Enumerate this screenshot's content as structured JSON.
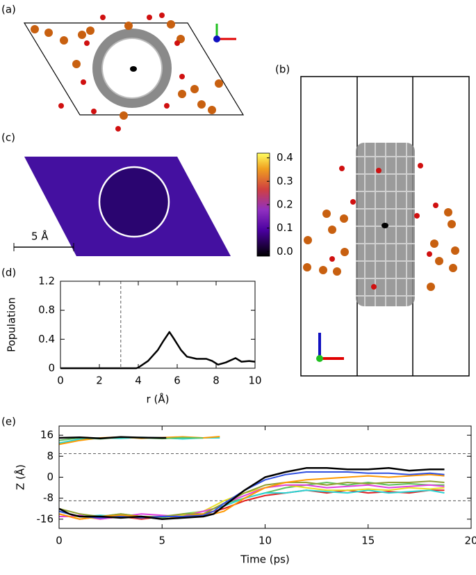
{
  "panel_labels": [
    "(a)",
    "(b)",
    "(c)",
    "(d)",
    "(e)"
  ],
  "chart_data": [
    {
      "type": "heatmap",
      "scale_label": "5 Å",
      "clim": [
        -0.02,
        0.42
      ],
      "cticks": [
        {
          "value": 0,
          "label": "0.0"
        },
        {
          "value": 0.1,
          "label": "0.1"
        },
        {
          "value": 0.2,
          "label": "0.2"
        },
        {
          "value": 0.3,
          "label": "0.3"
        },
        {
          "value": 0.4,
          "label": "0.4"
        }
      ]
    },
    {
      "type": "line",
      "xlabel": "r (Å)",
      "ylabel": "Population",
      "xlim": [
        0,
        10
      ],
      "ylim": [
        0,
        1.2
      ],
      "xticks": [
        0,
        2,
        4,
        6,
        8,
        10
      ],
      "yticks": [
        0,
        0.4,
        0.8,
        1.2
      ],
      "vline": 3.1,
      "series": [
        {
          "color": "#000000",
          "x": [
            0,
            3.9,
            4,
            4.5,
            5,
            5.3,
            5.6,
            5.8,
            6.2,
            6.5,
            7,
            7.5,
            7.8,
            8.1,
            8.5,
            9,
            9.3,
            9.7,
            10
          ],
          "values": [
            0,
            0,
            0.01,
            0.1,
            0.25,
            0.38,
            0.5,
            0.42,
            0.25,
            0.16,
            0.13,
            0.13,
            0.1,
            0.05,
            0.08,
            0.14,
            0.09,
            0.1,
            0.09
          ]
        }
      ]
    },
    {
      "type": "line",
      "xlabel": "Time (ps)",
      "ylabel": "Z (Å)",
      "xlim": [
        0,
        20
      ],
      "ylim": [
        -19.5,
        19.5
      ],
      "xticks": [
        0,
        5,
        10,
        15,
        20
      ],
      "yticks": [
        16,
        8,
        0,
        -8,
        -16
      ],
      "hlines": [
        9,
        -9
      ],
      "series": [
        {
          "color": "#2ad4d4",
          "x": [
            0,
            1,
            2,
            3,
            4,
            5,
            6,
            7,
            7.8
          ],
          "values": [
            13,
            14.5,
            15,
            14.8,
            15.2,
            15,
            14.6,
            15,
            15
          ]
        },
        {
          "color": "#ff9900",
          "x": [
            0,
            1,
            2,
            3,
            4,
            5,
            6,
            7,
            7.8
          ],
          "values": [
            12.5,
            14,
            15,
            15.3,
            14.8,
            15.1,
            15.4,
            15,
            15.5
          ]
        },
        {
          "color": "#60c060",
          "x": [
            0,
            1,
            2,
            3,
            4,
            5,
            6,
            7
          ],
          "values": [
            14,
            15,
            14.6,
            15.2,
            15,
            14.7,
            15.1,
            14.9
          ]
        },
        {
          "color": "#000000",
          "x": [
            0,
            1,
            2,
            3,
            4,
            5,
            5.2
          ],
          "values": [
            15,
            15.2,
            14.8,
            15.3,
            15.1,
            15,
            15
          ]
        },
        {
          "color": "#60c060",
          "x": [
            0,
            0.5,
            1,
            2,
            3,
            4,
            5,
            6,
            7,
            7.5,
            8,
            9,
            10,
            11,
            12,
            13,
            14,
            15,
            16,
            17,
            18,
            18.7
          ],
          "values": [
            -13,
            -14,
            -15,
            -15,
            -14,
            -15,
            -15.5,
            -14,
            -13,
            -12,
            -10,
            -8,
            -6,
            -4,
            -3,
            -2,
            -3,
            -2,
            -3,
            -2.5,
            -3,
            -3
          ]
        },
        {
          "color": "#e02020",
          "x": [
            0,
            0.5,
            1,
            2,
            3,
            4,
            5,
            6,
            7,
            7.5,
            8,
            9,
            10,
            11,
            12,
            13,
            14,
            15,
            16,
            17,
            18,
            18.7
          ],
          "values": [
            -14,
            -15,
            -16,
            -15,
            -15,
            -16,
            -15,
            -14.5,
            -14,
            -13,
            -12,
            -9,
            -7,
            -6,
            -5,
            -6,
            -5,
            -6,
            -5.5,
            -6,
            -5,
            -5
          ]
        },
        {
          "color": "#2ad4d4",
          "x": [
            0,
            0.5,
            1,
            2,
            3,
            4,
            5,
            6,
            7,
            7.5,
            8,
            9,
            10,
            11,
            12,
            13,
            14,
            15,
            16,
            17,
            18,
            18.7
          ],
          "values": [
            -13,
            -14,
            -15,
            -14.5,
            -15,
            -15,
            -16,
            -15,
            -14,
            -12,
            -11,
            -8,
            -6,
            -6,
            -5,
            -5.5,
            -6,
            -5,
            -6,
            -5.5,
            -5,
            -6
          ]
        },
        {
          "color": "#e8e020",
          "x": [
            0,
            0.5,
            1,
            2,
            3,
            4,
            5,
            6,
            7,
            7.5,
            8,
            9,
            10,
            11,
            12,
            13,
            14,
            15,
            16,
            17,
            18,
            18.7
          ],
          "values": [
            -14,
            -15,
            -15,
            -16,
            -15,
            -15.5,
            -15,
            -14.5,
            -13,
            -11,
            -9,
            -6,
            -4,
            -3,
            -4,
            -5,
            -5,
            -4.5,
            -5,
            -4,
            -4.5,
            -4
          ]
        },
        {
          "color": "#e040e0",
          "x": [
            0,
            0.5,
            1,
            2,
            3,
            4,
            5,
            6,
            7,
            7.5,
            8,
            9,
            10,
            11,
            12,
            13,
            14,
            15,
            16,
            17,
            18,
            18.7
          ],
          "values": [
            -15,
            -15,
            -14.5,
            -16,
            -15,
            -14,
            -14.5,
            -15,
            -13,
            -12,
            -10,
            -7,
            -4,
            -3,
            -3,
            -4,
            -3.5,
            -3,
            -4,
            -3.5,
            -3,
            -3.5
          ]
        },
        {
          "color": "#90a030",
          "x": [
            0,
            0.5,
            1,
            2,
            3,
            4,
            5,
            6,
            7,
            7.5,
            8,
            9,
            10,
            11,
            12,
            13,
            14,
            15,
            16,
            17,
            18,
            18.7
          ],
          "values": [
            -12,
            -13,
            -14,
            -15,
            -14,
            -15,
            -15,
            -14,
            -14,
            -12,
            -10,
            -6,
            -3,
            -2,
            -2,
            -3,
            -2,
            -2.5,
            -2,
            -2,
            -1.5,
            -2
          ]
        },
        {
          "color": "#ff9900",
          "x": [
            0,
            0.5,
            1,
            2,
            3,
            4,
            5,
            6,
            7,
            7.5,
            8,
            9,
            10,
            11,
            12,
            13,
            14,
            15,
            16,
            17,
            18,
            18.7
          ],
          "values": [
            -14,
            -15,
            -16,
            -15,
            -14.5,
            -15,
            -16,
            -15,
            -14,
            -14,
            -13,
            -8,
            -4,
            -2,
            -1,
            -0.5,
            0,
            0.5,
            0,
            0.5,
            1,
            0.5
          ]
        },
        {
          "color": "#3050e0",
          "x": [
            0,
            0.5,
            1,
            2,
            3,
            4,
            5,
            6,
            7,
            7.5,
            8,
            9,
            10,
            11,
            12,
            13,
            14,
            15,
            16,
            17,
            18,
            18.7
          ],
          "values": [
            -13,
            -14,
            -15,
            -15.5,
            -15,
            -15.5,
            -15,
            -15,
            -14.5,
            -13,
            -10,
            -5,
            -1,
            1,
            2,
            2,
            2,
            1.5,
            1.5,
            1,
            1.5,
            1
          ]
        },
        {
          "color": "#000000",
          "x": [
            0,
            0.5,
            1,
            2,
            3,
            4,
            5,
            6,
            7,
            7.5,
            8,
            9,
            10,
            11,
            12,
            13,
            14,
            15,
            16,
            17,
            18,
            18.7
          ],
          "values": [
            -12,
            -14,
            -15,
            -15,
            -15.5,
            -15,
            -16,
            -15.5,
            -15,
            -14,
            -11,
            -5,
            0,
            2,
            3.5,
            3.5,
            3,
            3,
            3.5,
            2.5,
            3,
            3
          ]
        }
      ]
    }
  ]
}
